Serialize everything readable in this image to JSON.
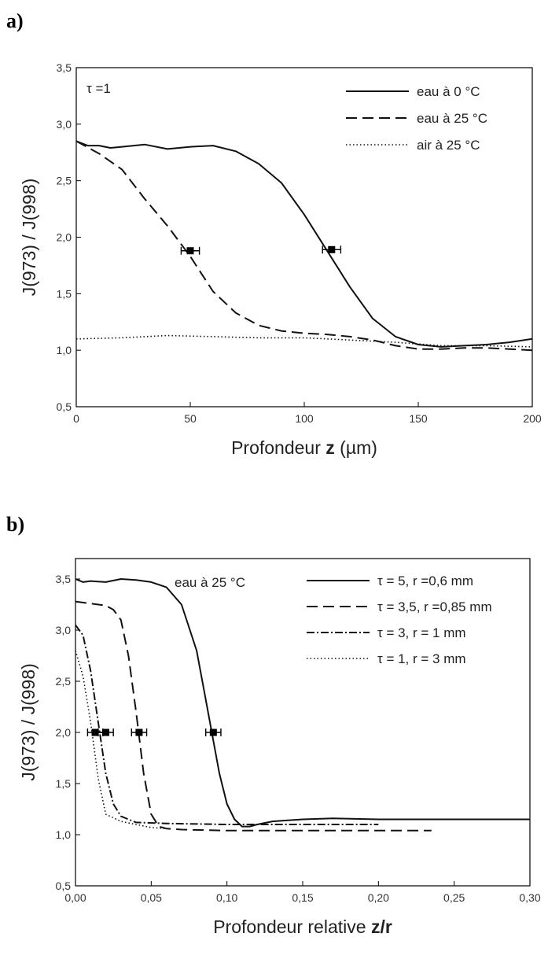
{
  "chart_data": [
    {
      "panel": "a)",
      "type": "line",
      "annotation": "τ =1",
      "xlabel_prefix": "Profondeur ",
      "xlabel_bold": "z",
      "xlabel_suffix": " (µm)",
      "ylabel": "J(973) / J(998)",
      "xlim": [
        0,
        200
      ],
      "ylim": [
        0.5,
        3.5
      ],
      "xticks": [
        0,
        50,
        100,
        150,
        200
      ],
      "xtick_labels": [
        "0",
        "50",
        "100",
        "150",
        "200"
      ],
      "yticks": [
        0.5,
        1.0,
        1.5,
        2.0,
        2.5,
        3.0,
        3.5
      ],
      "ytick_labels": [
        "0,5",
        "1,0",
        "1,5",
        "2,0",
        "2,5",
        "3,0",
        "3,5"
      ],
      "legend_position": "top-right",
      "series": [
        {
          "name": "eau à 0 °C",
          "style": "solid",
          "x": [
            0,
            5,
            10,
            15,
            20,
            30,
            40,
            50,
            60,
            70,
            80,
            90,
            100,
            110,
            120,
            130,
            140,
            150,
            160,
            170,
            180,
            190,
            200
          ],
          "y": [
            2.85,
            2.81,
            2.81,
            2.79,
            2.8,
            2.82,
            2.78,
            2.8,
            2.81,
            2.76,
            2.65,
            2.48,
            2.2,
            1.88,
            1.56,
            1.28,
            1.12,
            1.05,
            1.03,
            1.04,
            1.05,
            1.07,
            1.1
          ]
        },
        {
          "name": "eau à 25 °C",
          "style": "dashed",
          "x": [
            0,
            10,
            20,
            30,
            40,
            50,
            60,
            70,
            80,
            90,
            100,
            110,
            120,
            130,
            140,
            150,
            160,
            170,
            180,
            190,
            200
          ],
          "y": [
            2.85,
            2.74,
            2.6,
            2.34,
            2.1,
            1.83,
            1.52,
            1.33,
            1.22,
            1.17,
            1.15,
            1.14,
            1.12,
            1.09,
            1.04,
            1.01,
            1.01,
            1.02,
            1.02,
            1.01,
            1.0
          ]
        },
        {
          "name": "air à 25 °C",
          "style": "dotted",
          "x": [
            0,
            20,
            40,
            60,
            80,
            100,
            120,
            140,
            160,
            180,
            200
          ],
          "y": [
            1.1,
            1.11,
            1.13,
            1.12,
            1.11,
            1.11,
            1.09,
            1.07,
            1.04,
            1.04,
            1.03
          ]
        }
      ],
      "markers": [
        {
          "x": 50,
          "y": 1.88,
          "xerr": 4
        },
        {
          "x": 112,
          "y": 1.89,
          "xerr": 4
        }
      ]
    },
    {
      "panel": "b)",
      "type": "line",
      "annotation": "eau à 25 °C",
      "xlabel_prefix": "Profondeur relative ",
      "xlabel_bold": "z/r",
      "xlabel_suffix": "",
      "ylabel": "J(973) / J(998)",
      "xlim": [
        0,
        0.3
      ],
      "ylim": [
        0.5,
        3.7
      ],
      "xticks": [
        0,
        0.05,
        0.1,
        0.15,
        0.2,
        0.25,
        0.3
      ],
      "xtick_labels": [
        "0,00",
        "0,05",
        "0,10",
        "0,15",
        "0,20",
        "0,25",
        "0,30"
      ],
      "yticks": [
        0.5,
        1.0,
        1.5,
        2.0,
        2.5,
        3.0,
        3.5
      ],
      "ytick_labels": [
        "0,5",
        "1,0",
        "1,5",
        "2,0",
        "2,5",
        "3,0",
        "3,5"
      ],
      "legend_position": "top-right",
      "series": [
        {
          "name": "τ = 5, r =0,6 mm",
          "style": "solid",
          "x": [
            0,
            0.005,
            0.01,
            0.02,
            0.03,
            0.04,
            0.05,
            0.06,
            0.07,
            0.08,
            0.085,
            0.09,
            0.095,
            0.1,
            0.105,
            0.11,
            0.115,
            0.12,
            0.13,
            0.14,
            0.15,
            0.17,
            0.2,
            0.25,
            0.3
          ],
          "y": [
            3.5,
            3.47,
            3.48,
            3.47,
            3.5,
            3.49,
            3.47,
            3.42,
            3.25,
            2.8,
            2.4,
            2.0,
            1.6,
            1.3,
            1.15,
            1.08,
            1.08,
            1.1,
            1.13,
            1.14,
            1.15,
            1.16,
            1.15,
            1.15,
            1.15
          ]
        },
        {
          "name": "τ = 3,5, r =0,85 mm",
          "style": "dashed",
          "x": [
            0,
            0.01,
            0.02,
            0.025,
            0.03,
            0.035,
            0.04,
            0.045,
            0.05,
            0.055,
            0.06,
            0.07,
            0.1,
            0.15,
            0.2,
            0.235
          ],
          "y": [
            3.28,
            3.26,
            3.24,
            3.2,
            3.1,
            2.75,
            2.2,
            1.6,
            1.2,
            1.08,
            1.06,
            1.05,
            1.04,
            1.04,
            1.04,
            1.04
          ]
        },
        {
          "name": "τ = 3, r = 1 mm",
          "style": "dashdot",
          "x": [
            0,
            0.005,
            0.01,
            0.015,
            0.02,
            0.025,
            0.03,
            0.04,
            0.06,
            0.1,
            0.15,
            0.2
          ],
          "y": [
            3.05,
            2.95,
            2.6,
            2.1,
            1.6,
            1.3,
            1.18,
            1.12,
            1.11,
            1.1,
            1.1,
            1.1
          ]
        },
        {
          "name": "τ = 1, r = 3 mm",
          "style": "dotted",
          "x": [
            0,
            0.005,
            0.01,
            0.015,
            0.02,
            0.03,
            0.04,
            0.05,
            0.06
          ],
          "y": [
            2.8,
            2.55,
            2.1,
            1.55,
            1.2,
            1.13,
            1.1,
            1.07,
            1.06
          ]
        }
      ],
      "markers": [
        {
          "x": 0.013,
          "y": 2.0,
          "xerr": 0.005
        },
        {
          "x": 0.02,
          "y": 2.0,
          "xerr": 0.005
        },
        {
          "x": 0.042,
          "y": 2.0,
          "xerr": 0.005
        },
        {
          "x": 0.091,
          "y": 2.0,
          "xerr": 0.005
        }
      ]
    }
  ]
}
